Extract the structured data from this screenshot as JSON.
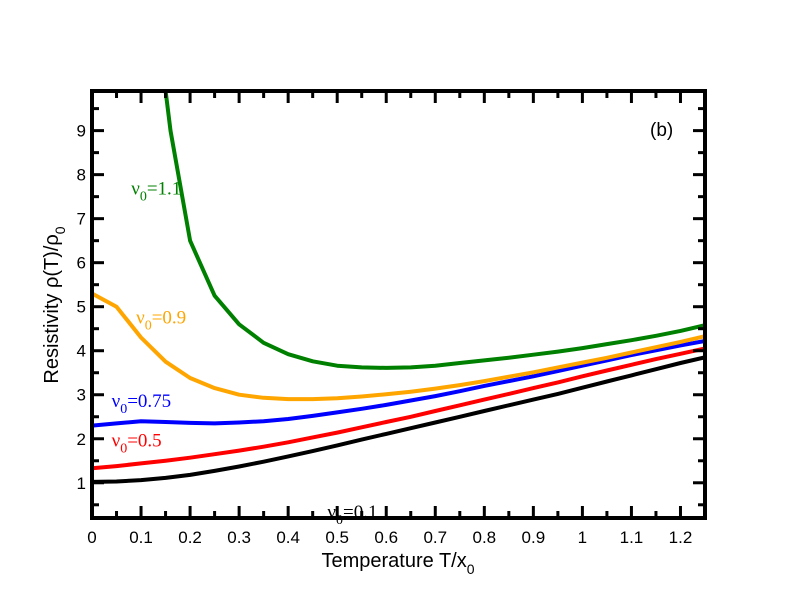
{
  "chart_data": {
    "type": "line",
    "panel_label": "(b)",
    "xlabel": {
      "main": "Temperature T/x",
      "sub": "0"
    },
    "ylabel": {
      "main": "Resistivity ρ(T)/ρ",
      "sub": "0"
    },
    "xlim": [
      0,
      1.25
    ],
    "ylim": [
      0.2,
      9.9
    ],
    "x_ticks": [
      0,
      0.1,
      0.2,
      0.3,
      0.4,
      0.5,
      0.6,
      0.7,
      0.8,
      0.9,
      1,
      1.1,
      1.2
    ],
    "x_tick_labels": [
      "0",
      "0.1",
      "0.2",
      "0.3",
      "0.4",
      "0.5",
      "0.6",
      "0.7",
      "0.8",
      "0.9",
      "1",
      "1.1",
      "1.2"
    ],
    "y_ticks": [
      1,
      2,
      3,
      4,
      5,
      6,
      7,
      8,
      9
    ],
    "y_tick_labels": [
      "1",
      "2",
      "3",
      "4",
      "5",
      "6",
      "7",
      "8",
      "9"
    ],
    "grid": false,
    "series": [
      {
        "name": "ν0=0.1",
        "label_main": "ν",
        "label_sub": "0",
        "label_rest": "=0.1",
        "label_at": [
          0.48,
          0.2
        ],
        "color": "#000000",
        "x": [
          0,
          0.05,
          0.1,
          0.15,
          0.2,
          0.25,
          0.3,
          0.35,
          0.4,
          0.45,
          0.5,
          0.55,
          0.6,
          0.65,
          0.7,
          0.75,
          0.8,
          0.85,
          0.9,
          0.95,
          1.0,
          1.05,
          1.1,
          1.15,
          1.2,
          1.25
        ],
        "y": [
          1.02,
          1.03,
          1.06,
          1.11,
          1.18,
          1.27,
          1.37,
          1.48,
          1.6,
          1.72,
          1.85,
          1.98,
          2.11,
          2.24,
          2.37,
          2.5,
          2.63,
          2.76,
          2.89,
          3.02,
          3.16,
          3.3,
          3.44,
          3.58,
          3.72,
          3.85
        ]
      },
      {
        "name": "ν0=0.5",
        "label_main": "ν",
        "label_sub": "0",
        "label_rest": "=0.5",
        "label_at": [
          0.04,
          1.82
        ],
        "color": "#ff0000",
        "x": [
          0,
          0.05,
          0.1,
          0.15,
          0.2,
          0.25,
          0.3,
          0.35,
          0.4,
          0.45,
          0.5,
          0.55,
          0.6,
          0.65,
          0.7,
          0.75,
          0.8,
          0.85,
          0.9,
          0.95,
          1.0,
          1.05,
          1.1,
          1.15,
          1.2,
          1.25
        ],
        "y": [
          1.33,
          1.38,
          1.44,
          1.5,
          1.57,
          1.65,
          1.73,
          1.82,
          1.92,
          2.03,
          2.14,
          2.26,
          2.38,
          2.5,
          2.63,
          2.76,
          2.89,
          3.02,
          3.15,
          3.28,
          3.42,
          3.55,
          3.68,
          3.81,
          3.93,
          4.05
        ]
      },
      {
        "name": "ν0=0.75",
        "label_main": "ν",
        "label_sub": "0",
        "label_rest": "=0.75",
        "label_at": [
          0.04,
          2.72
        ],
        "color": "#0000ff",
        "x": [
          0,
          0.05,
          0.1,
          0.15,
          0.2,
          0.25,
          0.3,
          0.35,
          0.4,
          0.45,
          0.5,
          0.55,
          0.6,
          0.65,
          0.7,
          0.75,
          0.8,
          0.85,
          0.9,
          0.95,
          1.0,
          1.05,
          1.1,
          1.15,
          1.2,
          1.25
        ],
        "y": [
          2.3,
          2.35,
          2.4,
          2.38,
          2.36,
          2.35,
          2.37,
          2.4,
          2.45,
          2.52,
          2.6,
          2.68,
          2.77,
          2.87,
          2.97,
          3.08,
          3.2,
          3.31,
          3.42,
          3.54,
          3.66,
          3.78,
          3.9,
          4.01,
          4.12,
          4.22
        ]
      },
      {
        "name": "ν0=0.9",
        "label_main": "ν",
        "label_sub": "0",
        "label_rest": "=0.9",
        "label_at": [
          0.09,
          4.62
        ],
        "color": "#ffa500",
        "x": [
          0,
          0.05,
          0.1,
          0.15,
          0.2,
          0.25,
          0.3,
          0.35,
          0.4,
          0.45,
          0.5,
          0.55,
          0.6,
          0.65,
          0.7,
          0.75,
          0.8,
          0.85,
          0.9,
          0.95,
          1.0,
          1.05,
          1.1,
          1.15,
          1.2,
          1.25
        ],
        "y": [
          5.3,
          5.0,
          4.3,
          3.75,
          3.38,
          3.15,
          3.0,
          2.93,
          2.9,
          2.9,
          2.92,
          2.96,
          3.01,
          3.07,
          3.14,
          3.22,
          3.31,
          3.41,
          3.51,
          3.62,
          3.73,
          3.84,
          3.96,
          4.08,
          4.2,
          4.33
        ]
      },
      {
        "name": "ν0=1.1",
        "label_main": "ν",
        "label_sub": "0",
        "label_rest": "=1.1",
        "label_at": [
          0.08,
          7.55
        ],
        "color": "#008000",
        "x": [
          0.15,
          0.16,
          0.2,
          0.25,
          0.3,
          0.35,
          0.4,
          0.45,
          0.5,
          0.55,
          0.6,
          0.65,
          0.7,
          0.75,
          0.8,
          0.85,
          0.9,
          0.95,
          1.0,
          1.05,
          1.1,
          1.15,
          1.2,
          1.25
        ],
        "y": [
          9.9,
          9.0,
          6.5,
          5.25,
          4.6,
          4.18,
          3.92,
          3.76,
          3.66,
          3.62,
          3.61,
          3.62,
          3.66,
          3.72,
          3.78,
          3.84,
          3.91,
          3.98,
          4.06,
          4.15,
          4.24,
          4.34,
          4.45,
          4.58
        ]
      }
    ]
  }
}
